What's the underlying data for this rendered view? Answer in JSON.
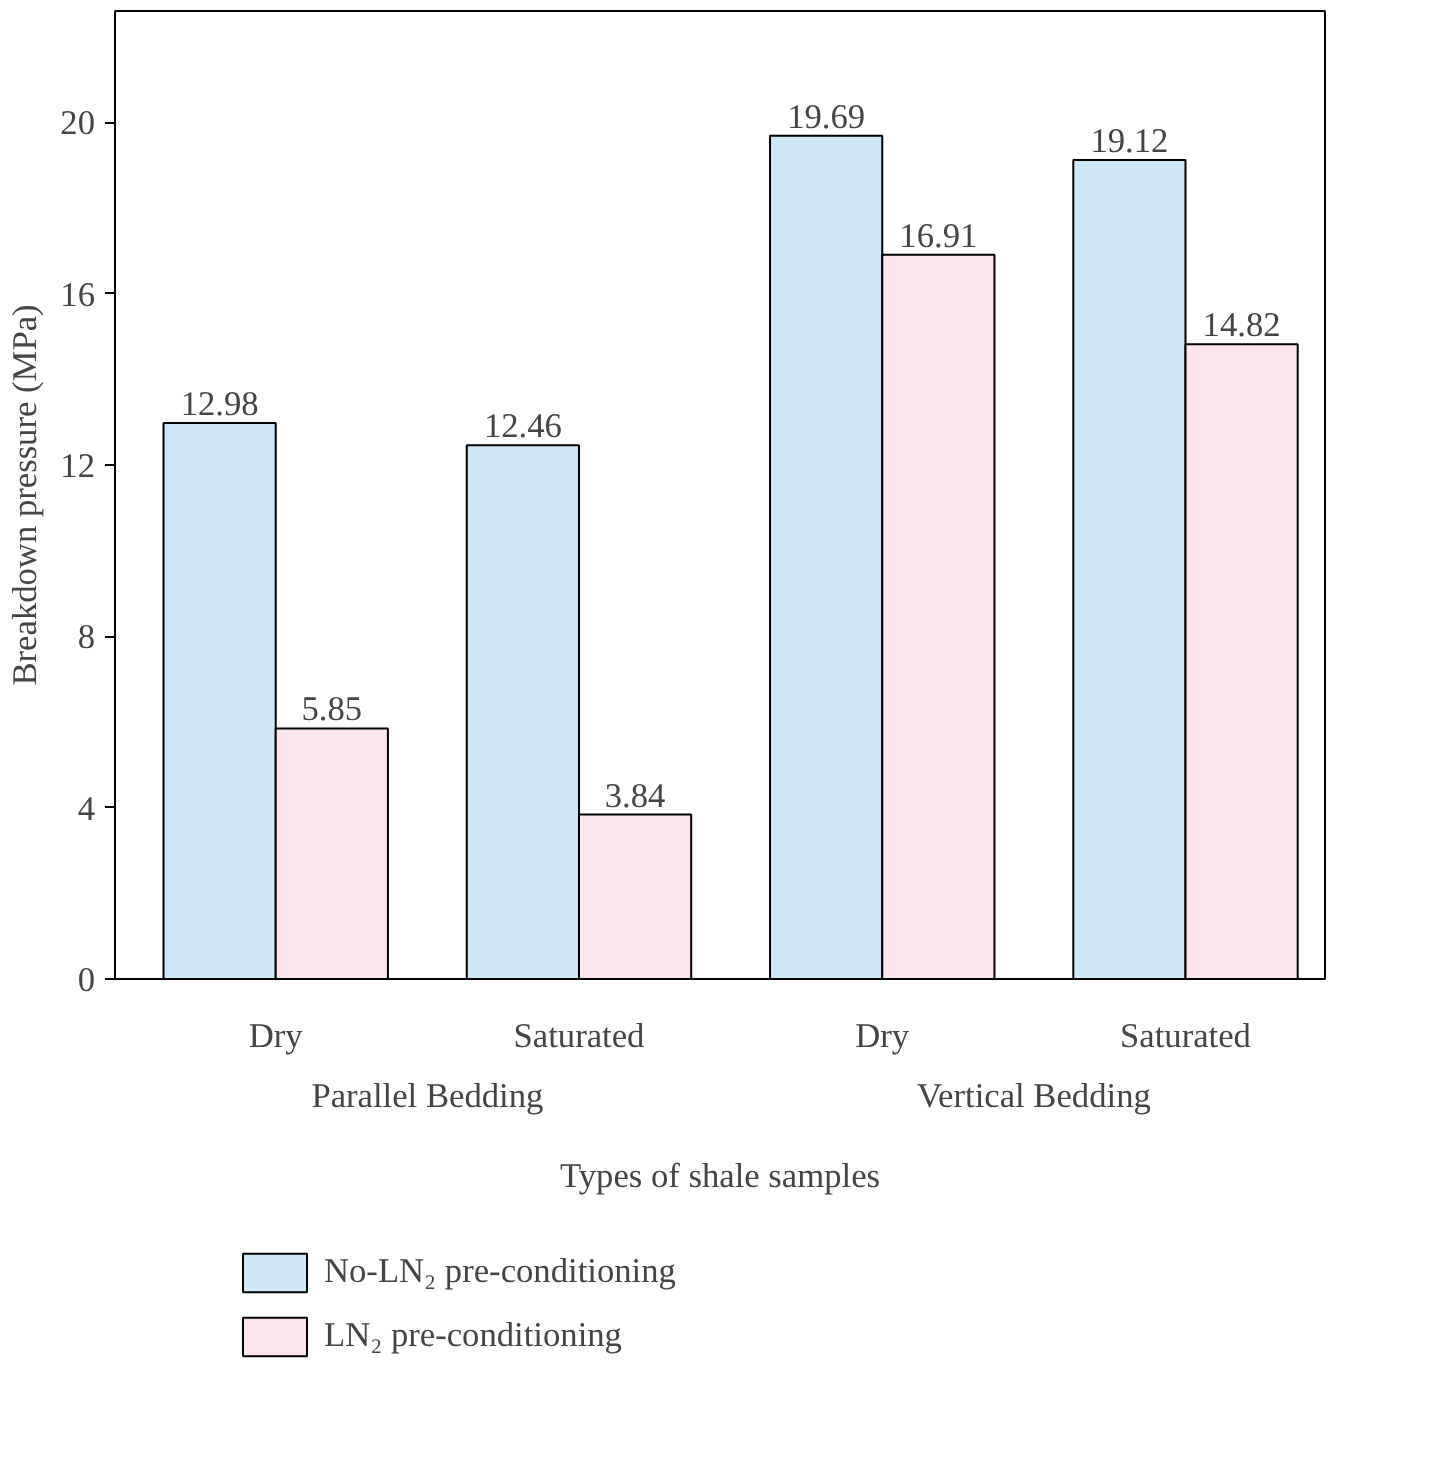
{
  "chart_data": {
    "type": "bar",
    "ylabel": "Breakdown pressure (MPa)",
    "xlabel": "Types of shale samples",
    "categories": [
      "Dry",
      "Saturated",
      "Dry",
      "Saturated"
    ],
    "annotations": [
      "Parallel Bedding",
      "Vertical Bedding"
    ],
    "series": [
      {
        "name": "No-LN₂ pre-conditioning",
        "color": "#cfe8f8",
        "values": [
          12.98,
          12.46,
          19.69,
          19.12
        ]
      },
      {
        "name": "LN₂ pre-conditioning",
        "color": "#fce4ee",
        "values": [
          5.85,
          3.84,
          16.91,
          14.82
        ]
      }
    ],
    "ylim": [
      0,
      22.6
    ],
    "yticks": [
      0,
      4,
      8,
      12,
      16,
      20
    ],
    "data_labels": true,
    "grid": false,
    "legend": "bottom"
  }
}
